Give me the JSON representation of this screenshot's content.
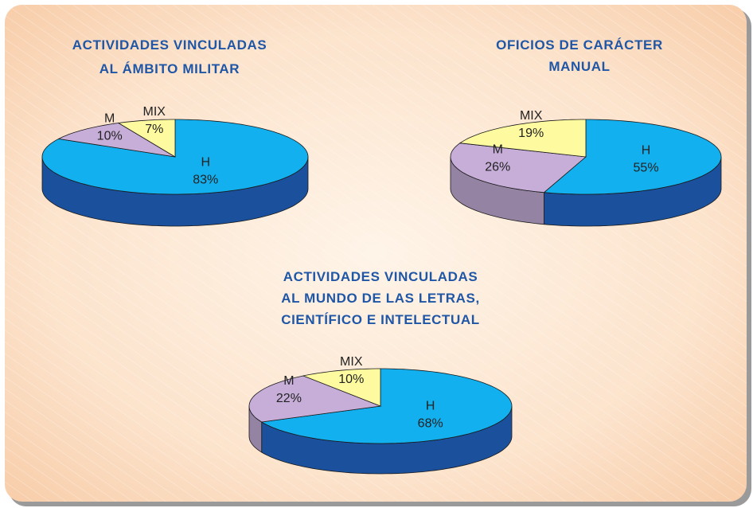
{
  "chart_data": [
    {
      "type": "pie",
      "title": [
        "ACTIVIDADES VINCULADAS",
        "AL ÁMBITO MILITAR"
      ],
      "categories": [
        "H",
        "M",
        "MIX"
      ],
      "values": [
        83,
        10,
        7
      ],
      "value_labels": [
        "83%",
        "10%",
        "7%"
      ],
      "colors": [
        "#12b0ee",
        "#c7aed9",
        "#fdfaa0"
      ]
    },
    {
      "type": "pie",
      "title": [
        "OFICIOS DE CARÁCTER",
        "MANUAL"
      ],
      "categories": [
        "H",
        "M",
        "MIX"
      ],
      "values": [
        55,
        26,
        19
      ],
      "value_labels": [
        "55%",
        "26%",
        "19%"
      ],
      "colors": [
        "#12b0ee",
        "#c7aed9",
        "#fdfaa0"
      ]
    },
    {
      "type": "pie",
      "title": [
        "ACTIVIDADES VINCULADAS",
        "AL MUNDO DE LAS LETRAS,",
        "CIENTÍFICO E INTELECTUAL"
      ],
      "categories": [
        "H",
        "M",
        "MIX"
      ],
      "values": [
        68,
        22,
        10
      ],
      "value_labels": [
        "68%",
        "22%",
        "10%"
      ],
      "colors": [
        "#12b0ee",
        "#c7aed9",
        "#fdfaa0"
      ]
    }
  ]
}
